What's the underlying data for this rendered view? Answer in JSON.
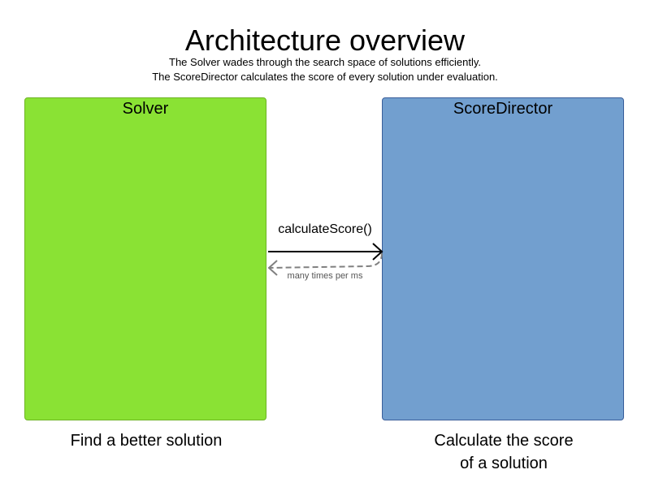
{
  "header": {
    "title": "Architecture overview",
    "subtitle_line1": "The Solver wades through the search space of solutions efficiently.",
    "subtitle_line2": "The ScoreDirector calculates the score of every solution under evaluation."
  },
  "solver": {
    "title": "Solver",
    "caption": "Find a better solution",
    "color": "#8ae234"
  },
  "score_director": {
    "title": "ScoreDirector",
    "caption_line1": "Calculate the score",
    "caption_line2": "of a solution",
    "color": "#729fcf"
  },
  "call": {
    "label": "calculateScore()",
    "return_label": "many times per ms"
  }
}
